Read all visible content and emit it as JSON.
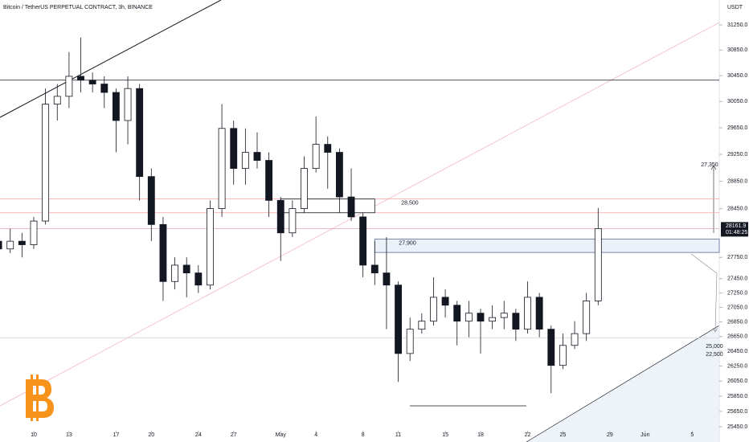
{
  "chart_data": {
    "type": "candlestick",
    "title": "Bitcoin / TetherUS PERPETUAL CONTRACT, 3h, BINANCE",
    "y_unit": "USDT",
    "log_scale": true,
    "xlim": [
      -2.87,
      58.3
    ],
    "ylim": [
      25252,
      31650
    ],
    "xticks": [
      {
        "value": 0,
        "label": "10"
      },
      {
        "value": 3,
        "label": "13"
      },
      {
        "value": 7,
        "label": "17"
      },
      {
        "value": 10,
        "label": "20"
      },
      {
        "value": 14,
        "label": "24"
      },
      {
        "value": 17,
        "label": "27"
      },
      {
        "value": 21,
        "label": "May"
      },
      {
        "value": 24,
        "label": "4"
      },
      {
        "value": 28,
        "label": "8"
      },
      {
        "value": 31,
        "label": "11"
      },
      {
        "value": 35,
        "label": "15"
      },
      {
        "value": 38,
        "label": "18"
      },
      {
        "value": 42,
        "label": "22"
      },
      {
        "value": 45,
        "label": "25"
      },
      {
        "value": 49,
        "label": "29"
      },
      {
        "value": 52,
        "label": "Jun"
      },
      {
        "value": 56,
        "label": "5"
      }
    ],
    "yticks": [
      {
        "value": 31250,
        "label": "31250.0"
      },
      {
        "value": 30850,
        "label": "30850.0"
      },
      {
        "value": 30450,
        "label": "30450.0"
      },
      {
        "value": 30050,
        "label": "30050.0"
      },
      {
        "value": 29650,
        "label": "29650.0"
      },
      {
        "value": 29250,
        "label": "29250.0"
      },
      {
        "value": 28850,
        "label": "28850.0"
      },
      {
        "value": 28450,
        "label": "28450.0"
      },
      {
        "value": 27750,
        "label": "27750.0"
      },
      {
        "value": 27450,
        "label": "27450.0"
      },
      {
        "value": 27250,
        "label": "27250.0"
      },
      {
        "value": 27050,
        "label": "27050.0"
      },
      {
        "value": 26850,
        "label": "26850.0"
      },
      {
        "value": 26650,
        "label": "26650.0"
      },
      {
        "value": 26450,
        "label": "26450.0"
      },
      {
        "value": 26250,
        "label": "26250.0"
      },
      {
        "value": 26050,
        "label": "26050.0"
      },
      {
        "value": 25850,
        "label": "25850.0"
      },
      {
        "value": 25650,
        "label": "25650.0"
      },
      {
        "value": 25450,
        "label": "25450.0"
      }
    ],
    "x": [
      -3,
      -2,
      -1,
      0,
      1,
      2,
      3,
      4,
      5,
      6,
      7,
      8,
      9,
      10,
      11,
      12,
      13,
      14,
      15,
      16,
      17,
      18,
      19,
      20,
      21,
      22,
      23,
      24,
      25,
      26,
      27,
      28,
      29,
      30,
      31,
      32,
      33,
      34,
      35,
      36,
      37,
      38,
      39,
      40,
      41,
      42,
      43,
      44,
      45,
      46,
      47,
      48
    ],
    "open": [
      27980,
      27870,
      27980,
      27930,
      28270,
      30010,
      30130,
      30440,
      30380,
      30320,
      30190,
      29760,
      30250,
      28920,
      28220,
      27410,
      27640,
      27530,
      27360,
      28450,
      29640,
      29040,
      29280,
      29160,
      28570,
      28100,
      28450,
      29040,
      29400,
      29280,
      28620,
      28330,
      27640,
      27530,
      27360,
      26420,
      26750,
      26860,
      27190,
      27080,
      26860,
      26970,
      26860,
      26910,
      26970,
      26750,
      27190,
      26750,
      26260,
      26530,
      26690,
      27140
    ],
    "high": [
      28100,
      28160,
      28100,
      28330,
      30250,
      30320,
      30820,
      31050,
      30500,
      30440,
      30250,
      30440,
      30320,
      29040,
      28330,
      27750,
      27750,
      27640,
      28570,
      30010,
      29760,
      29640,
      29580,
      29280,
      28620,
      28570,
      29220,
      29820,
      29520,
      29340,
      29040,
      28390,
      27980,
      28040,
      27410,
      26910,
      26970,
      27470,
      27300,
      27140,
      27140,
      27030,
      27080,
      27140,
      27030,
      27410,
      27250,
      26800,
      26690,
      26860,
      27250,
      28460
    ],
    "low": [
      27750,
      27810,
      27750,
      27870,
      28220,
      29760,
      29950,
      30190,
      30190,
      29950,
      29280,
      29400,
      28570,
      27980,
      27140,
      27300,
      27190,
      27250,
      27300,
      28330,
      28800,
      28800,
      29040,
      28330,
      27700,
      28040,
      28390,
      28980,
      28740,
      28390,
      28270,
      27470,
      27360,
      26750,
      26040,
      26320,
      26690,
      26800,
      26910,
      26530,
      26640,
      26420,
      26750,
      26750,
      26590,
      26690,
      26640,
      25890,
      26210,
      26480,
      26590,
      27080
    ],
    "close": [
      27870,
      27980,
      27930,
      28270,
      30010,
      30130,
      30440,
      30380,
      30320,
      30190,
      29760,
      30250,
      28920,
      28220,
      27410,
      27640,
      27530,
      27360,
      28450,
      29640,
      29040,
      29280,
      29160,
      28570,
      28100,
      28450,
      29040,
      29400,
      29280,
      28620,
      28330,
      27640,
      27530,
      27360,
      26420,
      26750,
      26860,
      27190,
      27080,
      26860,
      26970,
      26860,
      26910,
      26970,
      26750,
      27190,
      26750,
      26260,
      26530,
      26690,
      27140,
      28161.9
    ],
    "up_color": "#ffffff",
    "down_color": "#131722",
    "last_price": 28161.9,
    "countdown": "01:48:25",
    "levels": [
      {
        "value": 30380,
        "color": "#131722"
      },
      {
        "value": 28590,
        "color": "#f4a3a3"
      },
      {
        "value": 28390,
        "color": "#f4a3a3"
      },
      {
        "value": 28161.9,
        "color": "#e9a0b0"
      },
      {
        "value": 26630,
        "color": "#d6d6d6"
      }
    ],
    "zones": [
      {
        "label": "28,500",
        "range": [
          28390,
          28590
        ],
        "x": [
          21,
          29
        ],
        "color": "#ffffff",
        "stroke": "#131722"
      },
      {
        "label": "27,900",
        "range": [
          27820,
          28010
        ],
        "x": [
          29,
          58.3
        ],
        "color": "#e9eef8",
        "stroke": "#5b6b9a"
      }
    ],
    "annotations": [
      "27,350",
      "25,000",
      "22,500"
    ]
  }
}
